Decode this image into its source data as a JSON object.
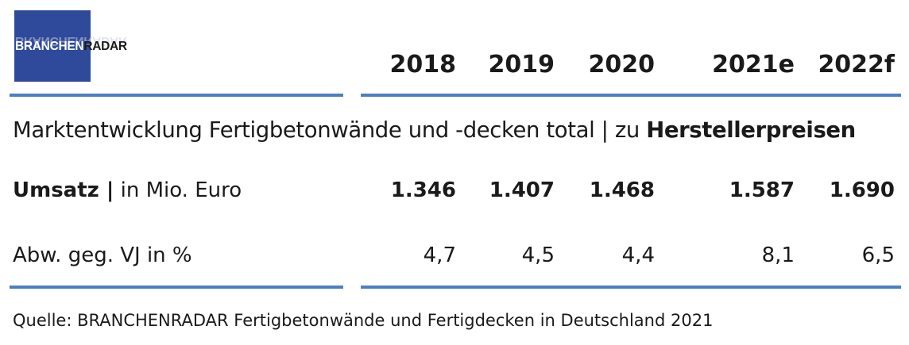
{
  "logo": {
    "part1": "BRANCHEN",
    "part2": "RADAR",
    "ghost": "BRANCHENRADAR"
  },
  "chart_data": {
    "type": "table",
    "title": "Marktentwicklung Fertigbetonwände und -decken total | zu ",
    "title_bold": "Herstellerpreisen",
    "columns": [
      "2018",
      "2019",
      "2020",
      "2021e",
      "2022f"
    ],
    "rows": [
      {
        "label_bold": "Umsatz |",
        "label": " in Mio. Euro",
        "values": [
          "1.346",
          "1.407",
          "1.468",
          "1.587",
          "1.690"
        ],
        "bold": true
      },
      {
        "label_bold": "",
        "label": "Abw. geg. VJ in %",
        "values": [
          "4,7",
          "4,5",
          "4,4",
          "8,1",
          "6,5"
        ],
        "bold": false
      }
    ],
    "source": "Quelle: BRANCHENRADAR Fertigbetonwände und Fertigdecken in Deutschland 2021"
  },
  "colors": {
    "rule": "#4a7fc4",
    "logo_bg": "#2f4a9b"
  }
}
